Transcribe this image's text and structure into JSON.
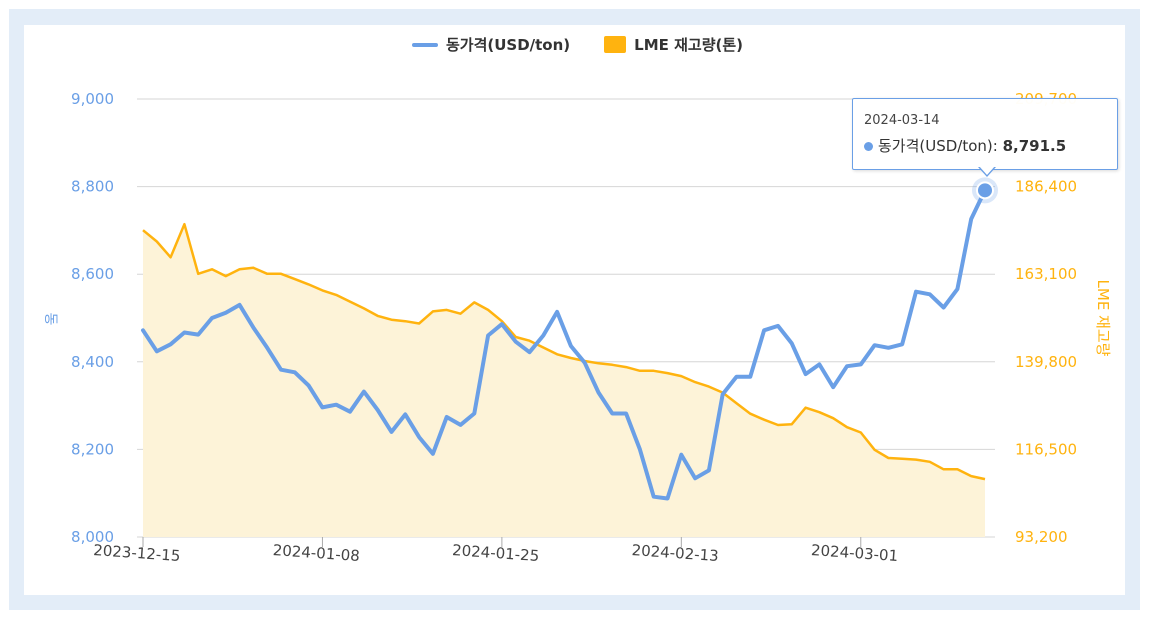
{
  "legend": {
    "series1": "동가격(USD/ton)",
    "series2": "LME 재고량(톤)"
  },
  "colors": {
    "price": "#6a9fe6",
    "stock": "#ffb30f",
    "stock_fill": "#fdf3d8",
    "grid": "#d6d6d6"
  },
  "tooltip": {
    "date": "2024-03-14",
    "label": "동가격(USD/ton):",
    "value": "8,791.5"
  },
  "chart_data": {
    "type": "line",
    "x_tick_labels": [
      "2023-12-15",
      "2024-01-08",
      "2024-01-25",
      "2024-02-13",
      "2024-03-01"
    ],
    "x_tick_index": [
      0,
      13,
      26,
      39,
      52
    ],
    "y_left": {
      "label": "동",
      "ticks": [
        "9,000",
        "8,800",
        "8,600",
        "8,400",
        "8,200",
        "8,000"
      ],
      "range": [
        8000,
        9000
      ]
    },
    "y_right": {
      "label": "LME 재고량",
      "ticks": [
        "209,700",
        "186,400",
        "163,100",
        "139,800",
        "116,500",
        "93,200"
      ],
      "range": [
        93200,
        209700
      ]
    },
    "series": [
      {
        "name": "동가격(USD/ton)",
        "axis": "left",
        "type": "line",
        "values": [
          8472,
          8424,
          8440,
          8467,
          8462,
          8500,
          8512,
          8530,
          8478,
          8432,
          8382,
          8376,
          8346,
          8296,
          8302,
          8286,
          8332,
          8290,
          8240,
          8280,
          8228,
          8190,
          8274,
          8256,
          8282,
          8460,
          8486,
          8446,
          8422,
          8460,
          8514,
          8436,
          8398,
          8330,
          8282,
          8282,
          8200,
          8092,
          8088,
          8188,
          8134,
          8152,
          8326,
          8366,
          8366,
          8472,
          8482,
          8442,
          8372,
          8394,
          8342,
          8390,
          8394,
          8438,
          8432,
          8440,
          8560,
          8554,
          8524,
          8566,
          8726,
          8791.5
        ]
      },
      {
        "name": "LME 재고량(톤)",
        "axis": "right",
        "type": "area",
        "values": [
          174800,
          171800,
          167600,
          176400,
          163200,
          164400,
          162600,
          164400,
          164800,
          163200,
          163200,
          161800,
          160400,
          158800,
          157600,
          155800,
          154000,
          152000,
          151000,
          150600,
          150000,
          153200,
          153600,
          152600,
          155600,
          153600,
          150600,
          146400,
          145400,
          143600,
          141800,
          140800,
          140000,
          139400,
          139000,
          138400,
          137400,
          137400,
          136800,
          136000,
          134400,
          133200,
          131600,
          128800,
          126000,
          124400,
          123000,
          123200,
          127600,
          126400,
          124800,
          122400,
          121000,
          116400,
          114200,
          114000,
          113800,
          113200,
          111200,
          111200,
          109400,
          108600
        ]
      }
    ]
  }
}
